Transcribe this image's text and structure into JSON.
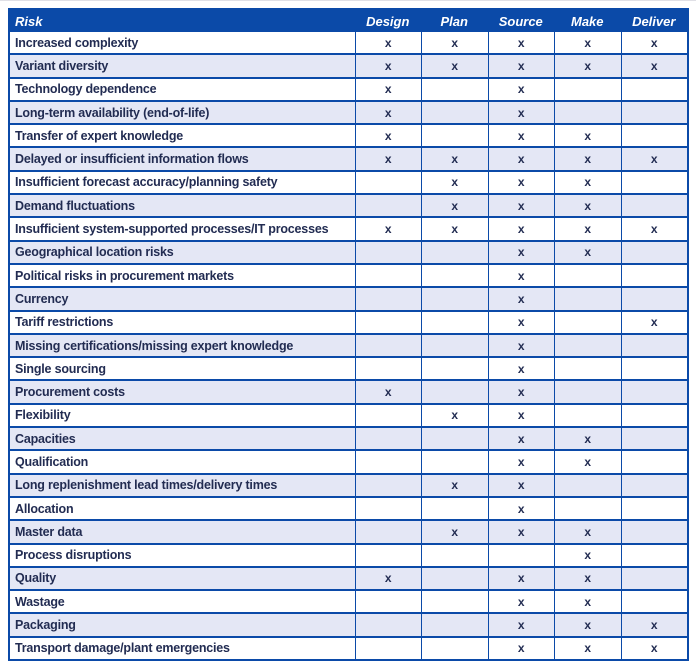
{
  "table": {
    "header": {
      "risk": "Risk",
      "phases": [
        "Design",
        "Plan",
        "Source",
        "Make",
        "Deliver"
      ]
    },
    "mark_symbol": "x",
    "rows": [
      {
        "risk": "Increased complexity",
        "marks": [
          1,
          1,
          1,
          1,
          1
        ]
      },
      {
        "risk": "Variant diversity",
        "marks": [
          1,
          1,
          1,
          1,
          1
        ]
      },
      {
        "risk": "Technology dependence",
        "marks": [
          1,
          0,
          1,
          0,
          0
        ]
      },
      {
        "risk": "Long-term availability (end-of-life)",
        "marks": [
          1,
          0,
          1,
          0,
          0
        ]
      },
      {
        "risk": "Transfer of expert knowledge",
        "marks": [
          1,
          0,
          1,
          1,
          0
        ]
      },
      {
        "risk": "Delayed or insufficient information flows",
        "marks": [
          1,
          1,
          1,
          1,
          1
        ]
      },
      {
        "risk": "Insufficient forecast accuracy/planning safety",
        "marks": [
          0,
          1,
          1,
          1,
          0
        ]
      },
      {
        "risk": "Demand fluctuations",
        "marks": [
          0,
          1,
          1,
          1,
          0
        ]
      },
      {
        "risk": "Insufficient system-supported processes/IT processes",
        "marks": [
          1,
          1,
          1,
          1,
          1
        ]
      },
      {
        "risk": "Geographical location risks",
        "marks": [
          0,
          0,
          1,
          1,
          0
        ]
      },
      {
        "risk": "Political risks in procurement markets",
        "marks": [
          0,
          0,
          1,
          0,
          0
        ]
      },
      {
        "risk": "Currency",
        "marks": [
          0,
          0,
          1,
          0,
          0
        ]
      },
      {
        "risk": "Tariff restrictions",
        "marks": [
          0,
          0,
          1,
          0,
          1
        ]
      },
      {
        "risk": "Missing certifications/missing expert knowledge",
        "marks": [
          0,
          0,
          1,
          0,
          0
        ]
      },
      {
        "risk": "Single sourcing",
        "marks": [
          0,
          0,
          1,
          0,
          0
        ]
      },
      {
        "risk": "Procurement costs",
        "marks": [
          1,
          0,
          1,
          0,
          0
        ]
      },
      {
        "risk": "Flexibility",
        "marks": [
          0,
          1,
          1,
          0,
          0
        ]
      },
      {
        "risk": "Capacities",
        "marks": [
          0,
          0,
          1,
          1,
          0
        ]
      },
      {
        "risk": "Qualification",
        "marks": [
          0,
          0,
          1,
          1,
          0
        ]
      },
      {
        "risk": "Long replenishment lead times/delivery times",
        "marks": [
          0,
          1,
          1,
          0,
          0
        ]
      },
      {
        "risk": "Allocation",
        "marks": [
          0,
          0,
          1,
          0,
          0
        ]
      },
      {
        "risk": "Master data",
        "marks": [
          0,
          1,
          1,
          1,
          0
        ]
      },
      {
        "risk": "Process disruptions",
        "marks": [
          0,
          0,
          0,
          1,
          0
        ]
      },
      {
        "risk": "Quality",
        "marks": [
          1,
          0,
          1,
          1,
          0
        ]
      },
      {
        "risk": "Wastage",
        "marks": [
          0,
          0,
          1,
          1,
          0
        ]
      },
      {
        "risk": "Packaging",
        "marks": [
          0,
          0,
          1,
          1,
          1
        ]
      },
      {
        "risk": "Transport damage/plant emergencies",
        "marks": [
          0,
          0,
          1,
          1,
          1
        ]
      }
    ]
  },
  "colors": {
    "header_bg": "#0b4aa8",
    "header_text": "#ffffff",
    "border": "#0b4aa8",
    "row_stripe": "#e4e7f5",
    "text": "#222c52",
    "page_bg": "#ffffff",
    "hairline": "#e0e0e6"
  }
}
